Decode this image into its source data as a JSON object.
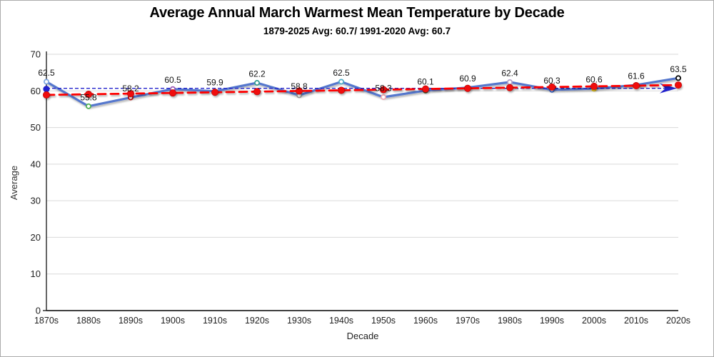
{
  "chart_data": {
    "type": "line",
    "title": "Average Annual March Warmest Mean Temperature by Decade",
    "subtitle": "1879-2025 Avg: 60.7/ 1991-2020 Avg: 60.7",
    "xlabel": "Decade",
    "ylabel": "Average",
    "ylim": [
      0,
      70
    ],
    "yticks": [
      0,
      10,
      20,
      30,
      40,
      50,
      60,
      70
    ],
    "grid": "horizontal",
    "grid_color": "#d9d9d9",
    "axis_color": "#000000",
    "tick_label_color": "#1f1f1f",
    "legend_position": "none",
    "categories": [
      "1870s",
      "1880s",
      "1890s",
      "1900s",
      "1910s",
      "1920s",
      "1930s",
      "1940s",
      "1950s",
      "1960s",
      "1970s",
      "1980s",
      "1990s",
      "2000s",
      "2010s",
      "2020s"
    ],
    "series": [
      {
        "name": "decade-average-line",
        "type": "line-with-markers",
        "color": "#5577cd",
        "values": [
          62.5,
          55.8,
          58.2,
          60.5,
          59.9,
          62.2,
          58.8,
          62.5,
          58.3,
          60.1,
          60.9,
          62.4,
          60.3,
          60.6,
          61.6,
          63.5
        ],
        "data_labels": [
          "62.5",
          "55.8",
          "58.2",
          "60.5",
          "59.9",
          "62.2",
          "58.8",
          "62.5",
          "58.3",
          "60.1",
          "60.9",
          "62.4",
          "60.3",
          "60.6",
          "61.6",
          "63.5"
        ],
        "marker_colors": [
          "#7da6e0",
          "#4caf50",
          "#c00000",
          "#9b59b6",
          "#b0b0b0",
          "#2e9b8f",
          "#909090",
          "#4bacc6",
          "#f2a7b3",
          "#375623",
          "#b0b0b0",
          "#b1a0c7",
          "#2f5bc4",
          "#e3c400",
          "#b0b0b0",
          "#000000"
        ]
      },
      {
        "name": "linear-trend-red-dashed",
        "type": "dashed-line-with-dots",
        "color": "#fe0000",
        "dot_color": "#f01010",
        "values": [
          58.9,
          59.08,
          59.26,
          59.44,
          59.62,
          59.8,
          59.98,
          60.16,
          60.34,
          60.52,
          60.7,
          60.88,
          61.06,
          61.24,
          61.42,
          61.6
        ]
      },
      {
        "name": "overall-average-reference-arrow",
        "type": "horizontal-reference-arrow",
        "color": "#2222cc",
        "value": 60.7
      }
    ]
  }
}
